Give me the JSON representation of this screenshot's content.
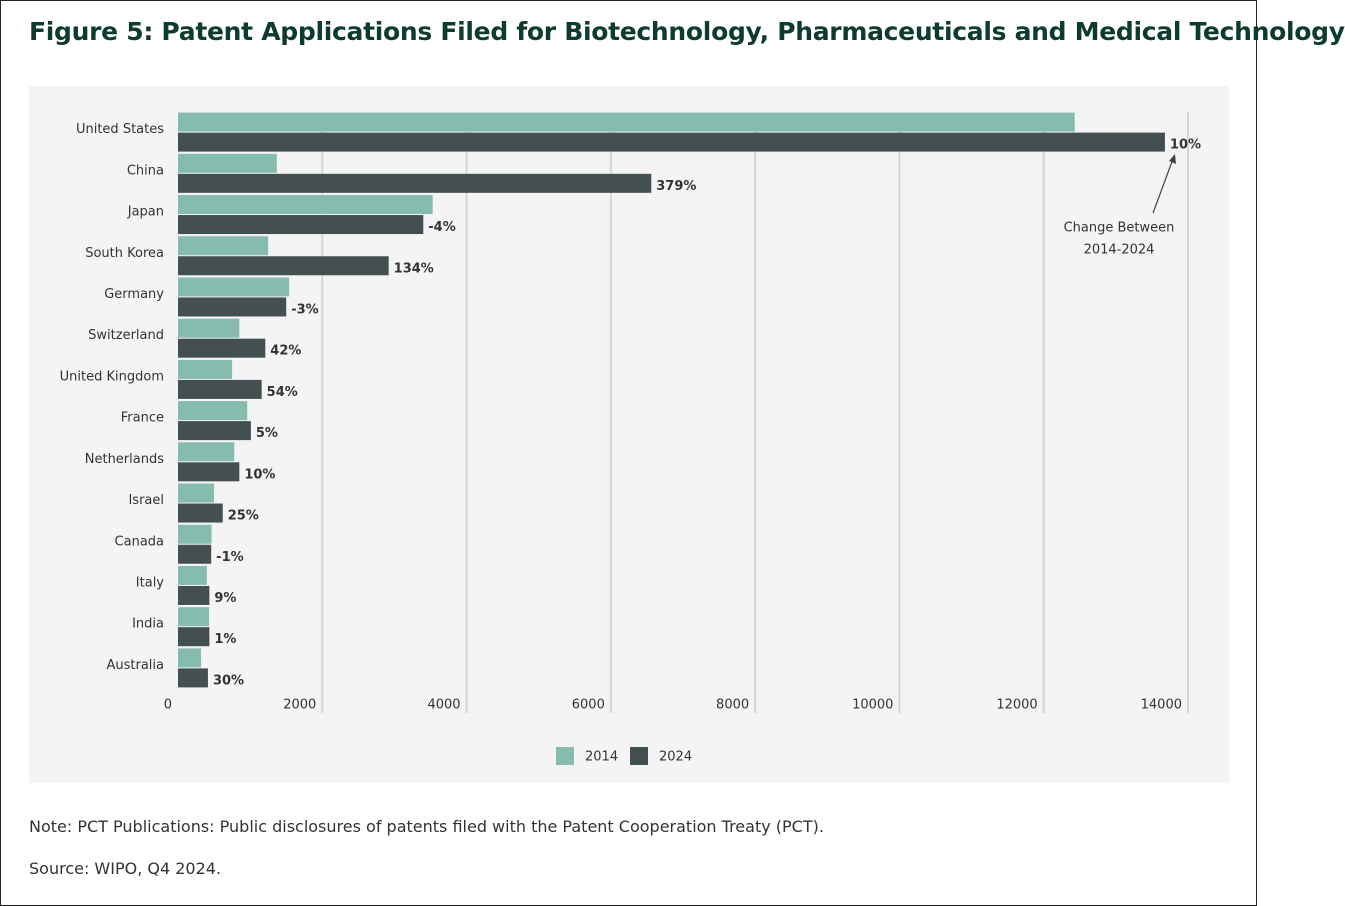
{
  "chart_data": {
    "type": "hbar",
    "title": "Figure 5: Patent Applications Filed for Biotechnology, Pharmaceuticals and Medical Technology",
    "categories": [
      "United States",
      "China",
      "Japan",
      "South Korea",
      "Germany",
      "Switzerland",
      "United Kingdom",
      "France",
      "Netherlands",
      "Israel",
      "Canada",
      "Italy",
      "India",
      "Australia"
    ],
    "series": [
      {
        "name": "2014",
        "color": "#85bcad",
        "values": [
          12430,
          1370,
          3530,
          1250,
          1540,
          850,
          750,
          960,
          780,
          500,
          465,
          400,
          430,
          320
        ]
      },
      {
        "name": "2024",
        "color": "#434f51",
        "values": [
          13680,
          6560,
          3400,
          2920,
          1500,
          1210,
          1160,
          1010,
          850,
          620,
          460,
          435,
          435,
          415
        ]
      }
    ],
    "change_labels": [
      "10%",
      "379%",
      "-4%",
      "134%",
      "-3%",
      "42%",
      "54%",
      "5%",
      "10%",
      "25%",
      "-1%",
      "9%",
      "1%",
      "30%"
    ],
    "annotation": [
      "Change Between",
      "2014-2024"
    ],
    "xlim": [
      0,
      14000
    ],
    "xticks": [
      0,
      2000,
      4000,
      6000,
      8000,
      10000,
      12000,
      14000
    ],
    "grid": true,
    "legend": "bottom"
  },
  "notes": [
    "Note: PCT Publications: Public disclosures of patents filed with the Patent Cooperation Treaty (PCT).",
    "Source: WIPO, Q4 2024."
  ]
}
